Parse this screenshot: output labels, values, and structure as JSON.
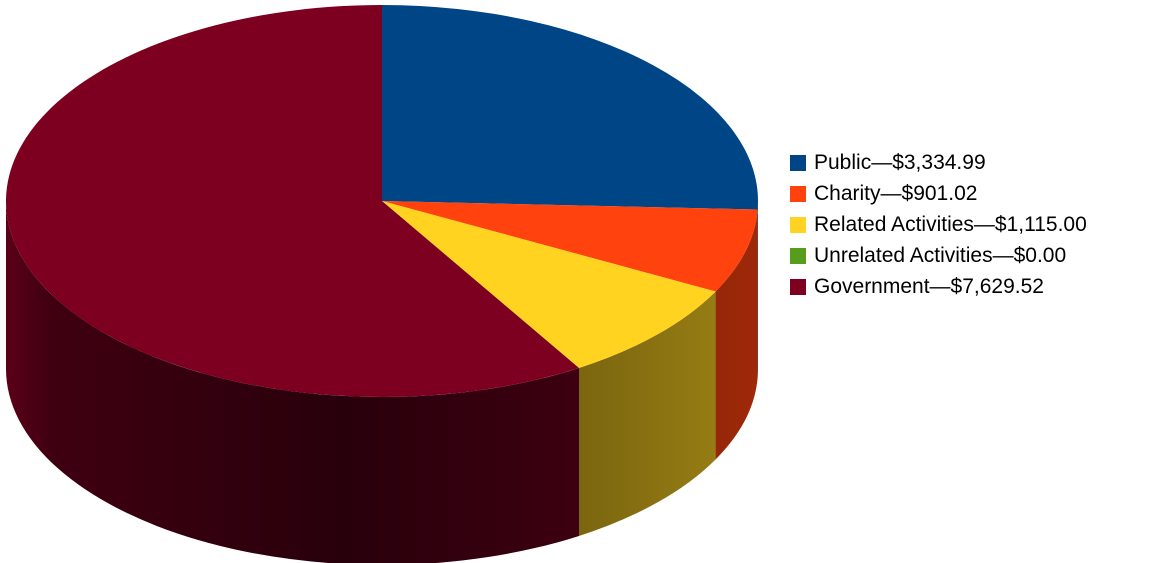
{
  "chart_data": {
    "type": "pie",
    "style": "3d",
    "title": "",
    "slices": [
      {
        "name": "Public",
        "value": 3334.99,
        "label": "Public—$3,334.99",
        "color": "#004586"
      },
      {
        "name": "Charity",
        "value": 901.02,
        "label": "Charity—$901.02",
        "color": "#ff420e"
      },
      {
        "name": "Related Activities",
        "value": 1115.0,
        "label": "Related Activities—$1,115.00",
        "color": "#ffd320"
      },
      {
        "name": "Unrelated Activities",
        "value": 0.0,
        "label": "Unrelated Activities—$0.00",
        "color": "#579d1c"
      },
      {
        "name": "Government",
        "value": 7629.52,
        "label": "Government—$7,629.52",
        "color": "#7e0021"
      }
    ],
    "legend_position": "right"
  }
}
